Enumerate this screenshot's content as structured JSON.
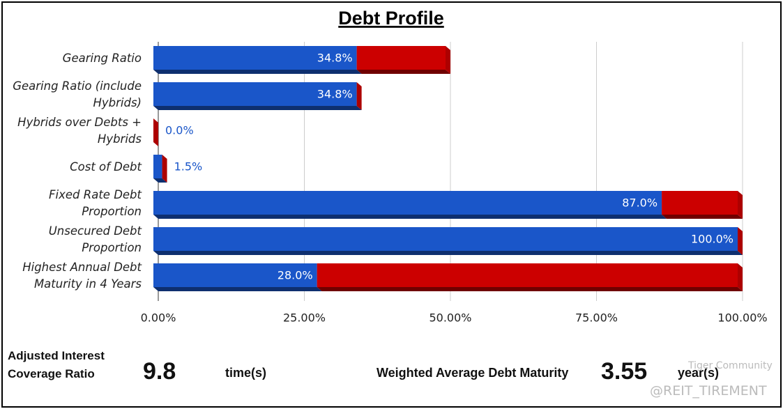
{
  "chart_data": {
    "type": "bar3d",
    "title": "Debt Profile",
    "categories": [
      "Gearing Ratio",
      "Gearing Ratio (include Hybrids)",
      "Hybrids over Debts + Hybrids",
      "Cost of Debt",
      "Fixed Rate Debt Proportion",
      "Unsecured Debt Proportion",
      "Highest Annual Debt Maturity in 4 Years"
    ],
    "series": [
      {
        "color": "#1a56c9",
        "values": [
          34.8,
          34.8,
          0.0,
          1.5,
          87.0,
          100.0,
          28.0
        ],
        "value_labels": [
          "34.8%",
          "34.8%",
          "0.0%",
          "1.5%",
          "87.0%",
          "100.0%",
          "28.0%"
        ]
      },
      {
        "color": "#cc0000",
        "values": [
          15.2,
          0,
          0,
          0,
          13.0,
          0,
          72.0
        ]
      }
    ],
    "xlim": [
      0,
      100
    ],
    "xticks": [
      {
        "value": 0,
        "label": "0.00%"
      },
      {
        "value": 25,
        "label": "25.00%"
      },
      {
        "value": 50,
        "label": "50.00%"
      },
      {
        "value": 75,
        "label": "75.00%"
      },
      {
        "value": 100,
        "label": "100.00%"
      }
    ],
    "grid": true
  },
  "metrics": {
    "coverage_label": "Adjusted Interest Coverage Ratio",
    "coverage_value": "9.8",
    "coverage_unit": "time(s)",
    "maturity_label": "Weighted Average Debt Maturity",
    "maturity_value": "3.55",
    "maturity_unit": "year(s)"
  },
  "watermark": {
    "brand": "Tiger Community",
    "handle": "@REIT_TIREMENT"
  }
}
